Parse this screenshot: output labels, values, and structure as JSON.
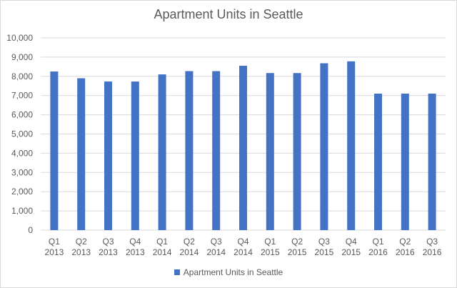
{
  "chart_data": {
    "type": "bar",
    "title": "Apartment Units in Seattle",
    "categories": [
      [
        "Q1",
        "2013"
      ],
      [
        "Q2",
        "2013"
      ],
      [
        "Q3",
        "2013"
      ],
      [
        "Q4",
        "2013"
      ],
      [
        "Q1",
        "2014"
      ],
      [
        "Q2",
        "2014"
      ],
      [
        "Q3",
        "2014"
      ],
      [
        "Q4",
        "2014"
      ],
      [
        "Q1",
        "2015"
      ],
      [
        "Q2",
        "2015"
      ],
      [
        "Q3",
        "2015"
      ],
      [
        "Q4",
        "2015"
      ],
      [
        "Q1",
        "2016"
      ],
      [
        "Q2",
        "2016"
      ],
      [
        "Q3",
        "2016"
      ]
    ],
    "series": [
      {
        "name": "Apartment Units in Seattle",
        "color": "#4472c4",
        "values": [
          8250,
          7900,
          7730,
          7730,
          8100,
          8270,
          8270,
          8550,
          8170,
          8170,
          8680,
          8780,
          7100,
          7100,
          7100
        ]
      }
    ],
    "ylim": [
      0,
      10000
    ],
    "yticks": [
      "0",
      "1,000",
      "2,000",
      "3,000",
      "4,000",
      "5,000",
      "6,000",
      "7,000",
      "8,000",
      "9,000",
      "10,000"
    ],
    "grid": true,
    "legend_position": "bottom"
  }
}
